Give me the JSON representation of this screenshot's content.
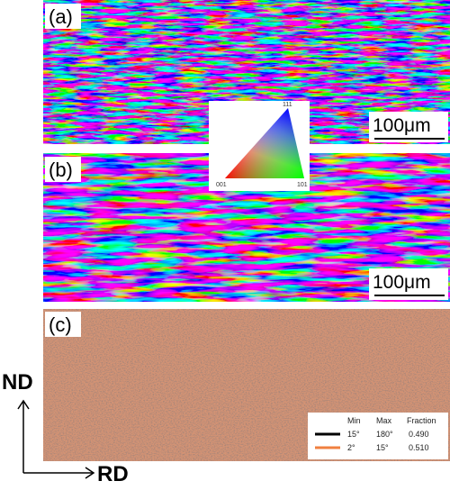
{
  "panels": [
    {
      "label": "(a)",
      "scale_bar": "100μm"
    },
    {
      "label": "(b)",
      "scale_bar": "100μm"
    },
    {
      "label": "(c)"
    }
  ],
  "ipf_key": {
    "corners": [
      "111",
      "001",
      "101"
    ]
  },
  "axes": {
    "vertical": "ND",
    "horizontal": "RD"
  },
  "boundary_legend": {
    "header": [
      "Min",
      "Max",
      "Fraction"
    ],
    "rows": [
      [
        "15°",
        "180°",
        "0.490"
      ],
      [
        "2°",
        "15°",
        "0.510"
      ]
    ]
  }
}
